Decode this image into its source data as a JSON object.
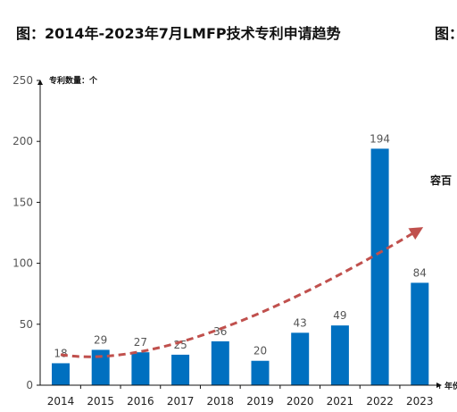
{
  "title": "图：2014年-2023年7月LMFP技术专利申请趋势",
  "title_second_fragment": "图：",
  "side_label": "容百",
  "chart_data": {
    "type": "bar",
    "categories": [
      "2014",
      "2015",
      "2016",
      "2017",
      "2018",
      "2019",
      "2020",
      "2021",
      "2022",
      "2023"
    ],
    "values": [
      18,
      29,
      27,
      25,
      36,
      20,
      43,
      49,
      194,
      84
    ],
    "ylabel": "专利数量：个",
    "xlabel": "年份",
    "ylim": [
      0,
      250
    ],
    "yticks": [
      0,
      50,
      100,
      150,
      200,
      250
    ],
    "bar_color": "#0070C0",
    "trend": {
      "type": "dashed-curve-arrow",
      "color": "#C0504D"
    },
    "grid": false
  }
}
